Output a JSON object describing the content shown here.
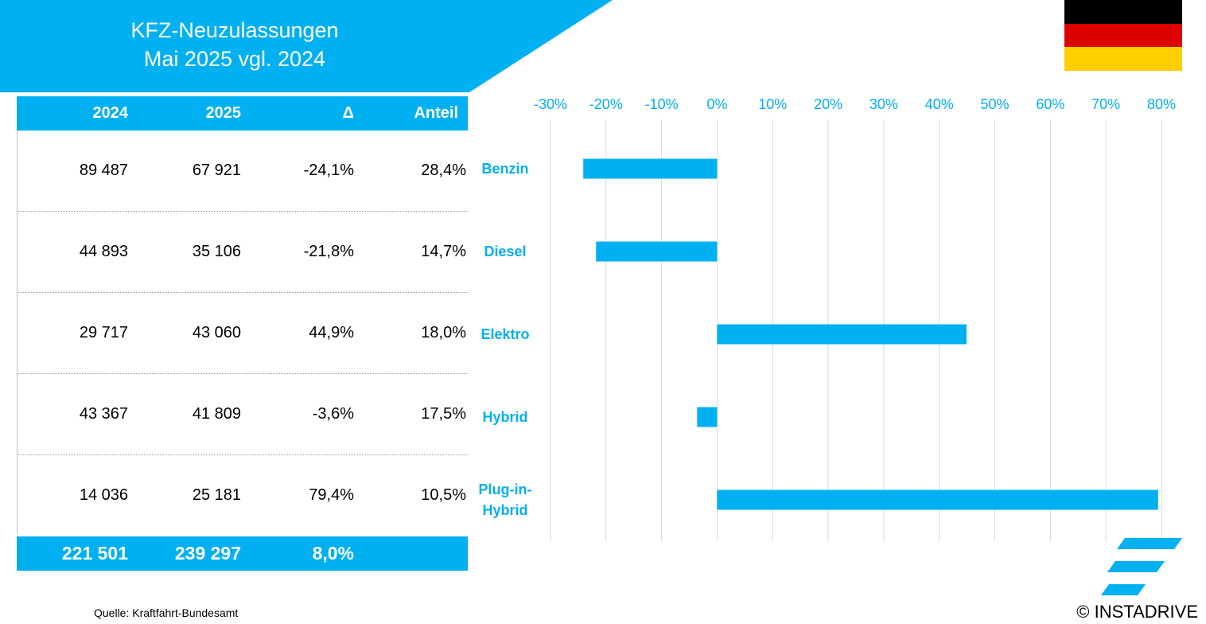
{
  "header": {
    "title_line1": "KFZ-Neuzulassungen",
    "title_line2": "Mai 2025 vgl. 2024",
    "banner_color": "#00b0f0"
  },
  "flag_colors": [
    "#000000",
    "#dd0000",
    "#ffce00"
  ],
  "table": {
    "headers": [
      "2024",
      "2025",
      "Δ",
      "Anteil"
    ],
    "rows": [
      [
        "89 487",
        "67 921",
        "-24,1%",
        "28,4%"
      ],
      [
        "44 893",
        "35 106",
        "-21,8%",
        "14,7%"
      ],
      [
        "29 717",
        "43 060",
        "44,9%",
        "18,0%"
      ],
      [
        "43 367",
        "41 809",
        "-3,6%",
        "17,5%"
      ],
      [
        "14 036",
        "25 181",
        "79,4%",
        "10,5%"
      ]
    ],
    "total": [
      "221 501",
      "239 297",
      "8,0%",
      ""
    ]
  },
  "chart_data": {
    "type": "bar",
    "orientation": "horizontal",
    "categories": [
      "Benzin",
      "Diesel",
      "Elektro",
      "Hybrid",
      "Plug-in-Hybrid"
    ],
    "category_lines": [
      [
        "Benzin"
      ],
      [
        "Diesel"
      ],
      [
        "Elektro"
      ],
      [
        "Hybrid"
      ],
      [
        "Plug-in-",
        "Hybrid"
      ]
    ],
    "values": [
      -24.1,
      -21.8,
      44.9,
      -3.6,
      79.4
    ],
    "xlim": [
      -30,
      80
    ],
    "ticks": [
      -30,
      -20,
      -10,
      0,
      10,
      20,
      30,
      40,
      50,
      60,
      70,
      80
    ],
    "tick_labels": [
      "-30%",
      "-20%",
      "-10%",
      "0%",
      "10%",
      "20%",
      "30%",
      "40%",
      "50%",
      "60%",
      "70%",
      "80%"
    ],
    "axis_position": "top",
    "grid": true,
    "bar_color": "#00b0f0",
    "label_color": "#00b0f0"
  },
  "footer": {
    "source": "Quelle: Kraftfahrt-Bundesamt",
    "copyright": "© INSTADRIVE"
  }
}
